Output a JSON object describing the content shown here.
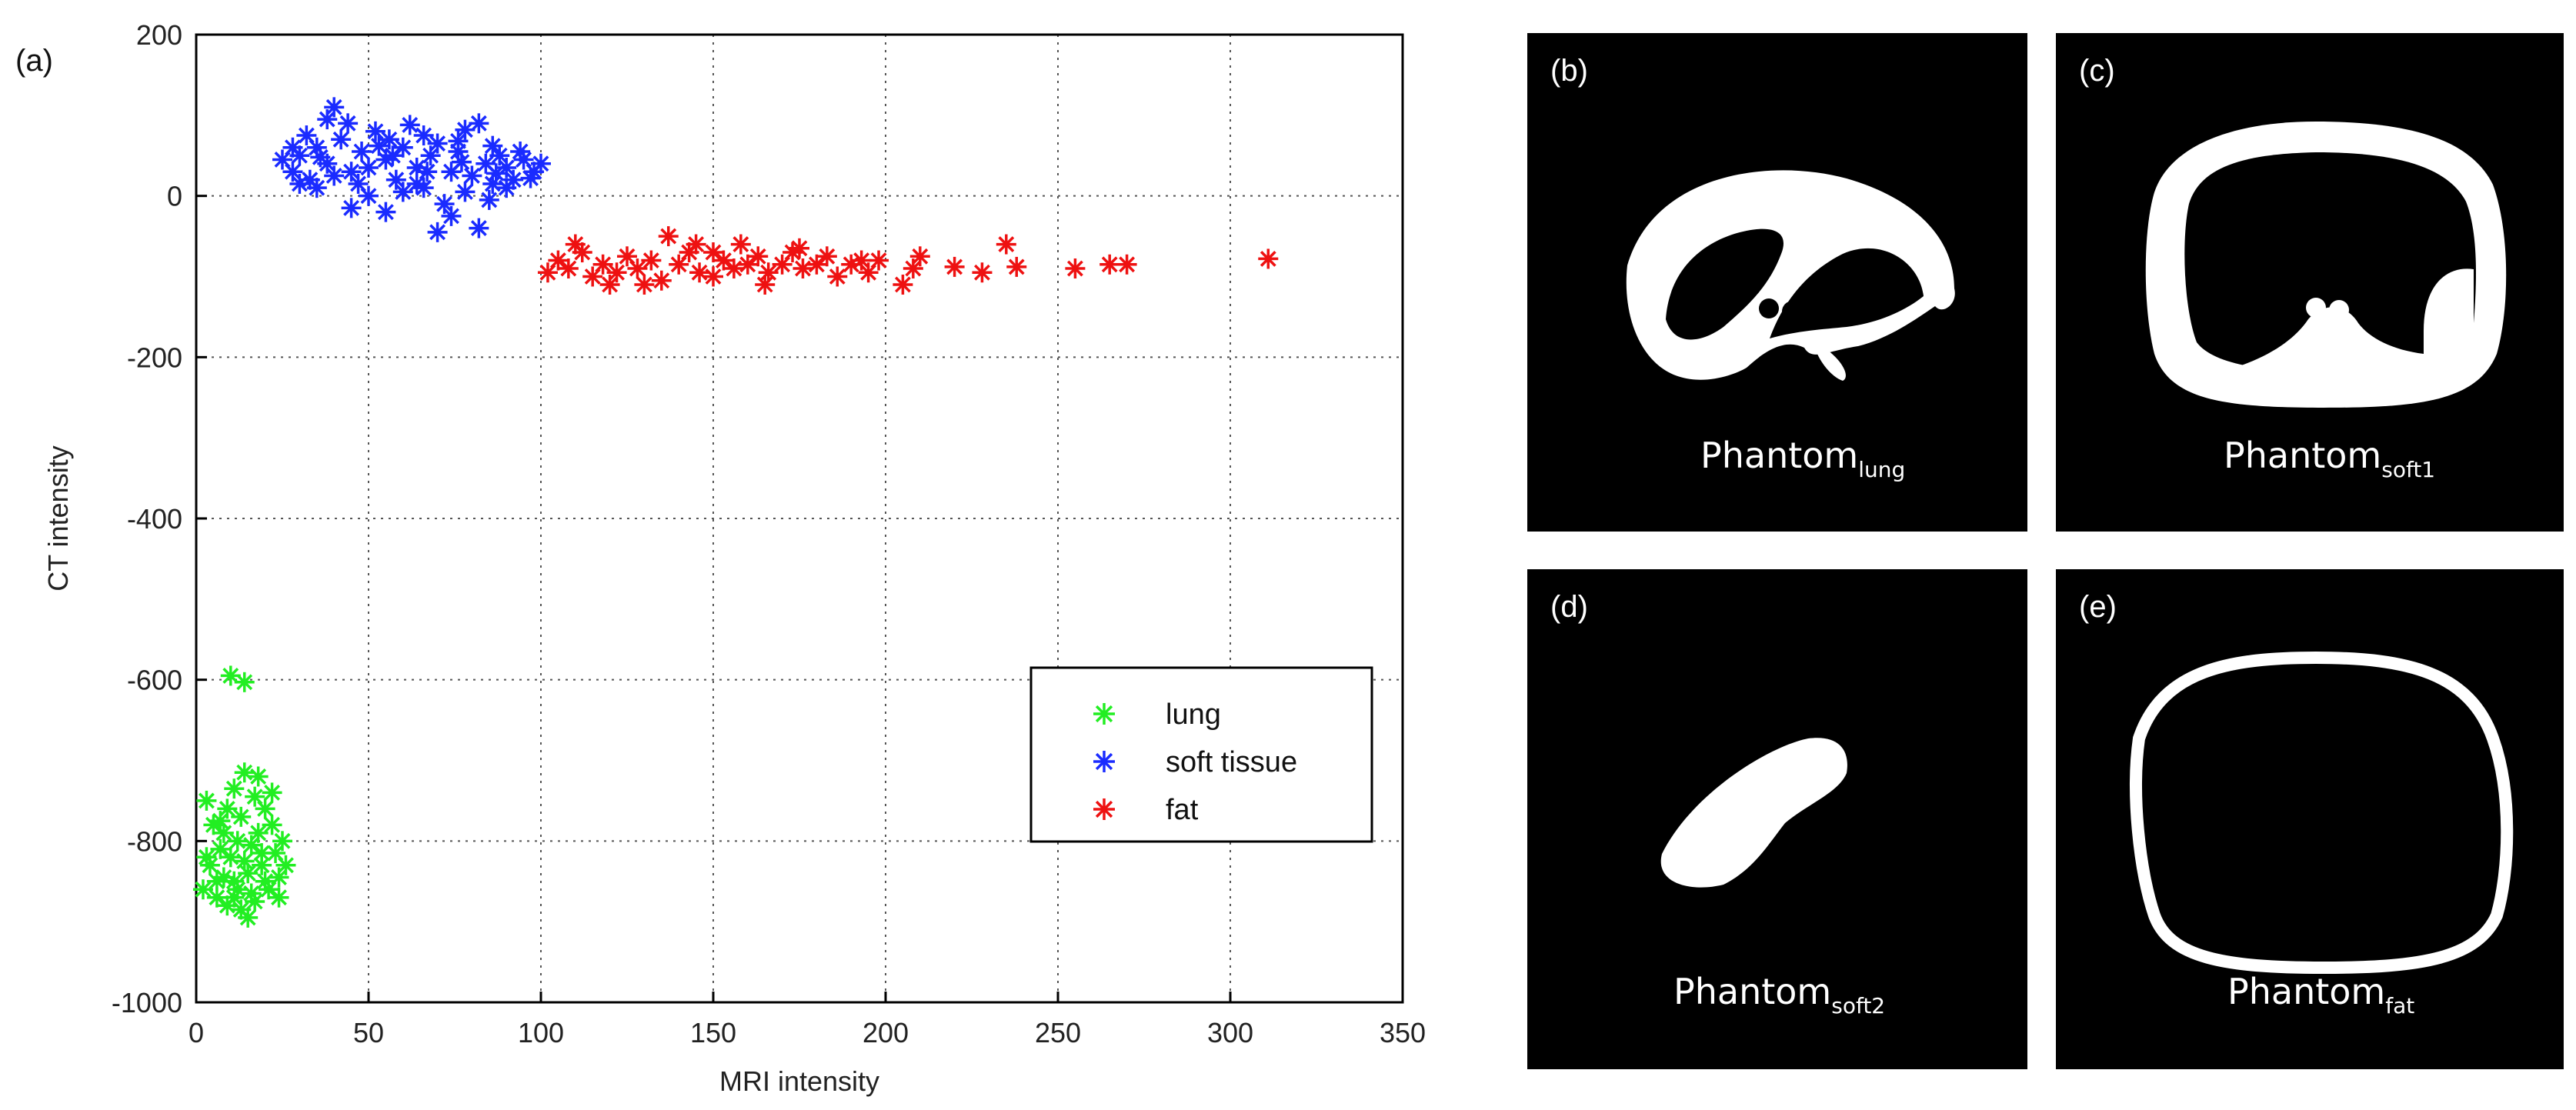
{
  "chart_data": {
    "type": "scatter",
    "panel_label": "(a)",
    "xlabel": "MRI intensity",
    "ylabel": "CT intensity",
    "xlim": [
      0,
      350
    ],
    "ylim": [
      -1000,
      200
    ],
    "xticks": [
      0,
      50,
      100,
      150,
      200,
      250,
      300,
      350
    ],
    "yticks": [
      200,
      0,
      -200,
      -400,
      -600,
      -800,
      -1000
    ],
    "grid": true,
    "legend_position": "bottom-right",
    "series": [
      {
        "name": "lung",
        "color": "#22ee22",
        "marker": "asterisk",
        "points": [
          [
            10,
            -595
          ],
          [
            14,
            -603
          ],
          [
            3,
            -750
          ],
          [
            5,
            -780
          ],
          [
            8,
            -790
          ],
          [
            12,
            -800
          ],
          [
            16,
            -805
          ],
          [
            20,
            -760
          ],
          [
            22,
            -740
          ],
          [
            18,
            -720
          ],
          [
            14,
            -715
          ],
          [
            11,
            -735
          ],
          [
            7,
            -810
          ],
          [
            4,
            -830
          ],
          [
            2,
            -860
          ],
          [
            6,
            -870
          ],
          [
            9,
            -880
          ],
          [
            13,
            -885
          ],
          [
            17,
            -875
          ],
          [
            21,
            -860
          ],
          [
            24,
            -845
          ],
          [
            26,
            -830
          ],
          [
            23,
            -815
          ],
          [
            19,
            -830
          ],
          [
            15,
            -840
          ],
          [
            11,
            -850
          ],
          [
            8,
            -845
          ],
          [
            12,
            -860
          ],
          [
            16,
            -865
          ],
          [
            20,
            -850
          ],
          [
            14,
            -825
          ],
          [
            10,
            -820
          ],
          [
            18,
            -790
          ],
          [
            22,
            -780
          ],
          [
            25,
            -800
          ],
          [
            13,
            -770
          ],
          [
            9,
            -760
          ],
          [
            17,
            -745
          ],
          [
            6,
            -850
          ],
          [
            3,
            -820
          ],
          [
            15,
            -895
          ],
          [
            11,
            -870
          ],
          [
            19,
            -815
          ],
          [
            24,
            -870
          ],
          [
            7,
            -775
          ]
        ]
      },
      {
        "name": "soft tissue",
        "color": "#1a2bff",
        "marker": "asterisk",
        "points": [
          [
            25,
            45
          ],
          [
            28,
            30
          ],
          [
            30,
            50
          ],
          [
            33,
            20
          ],
          [
            35,
            60
          ],
          [
            38,
            40
          ],
          [
            40,
            110
          ],
          [
            38,
            95
          ],
          [
            42,
            70
          ],
          [
            45,
            30
          ],
          [
            48,
            55
          ],
          [
            50,
            0
          ],
          [
            52,
            80
          ],
          [
            55,
            45
          ],
          [
            58,
            20
          ],
          [
            60,
            60
          ],
          [
            62,
            88
          ],
          [
            64,
            35
          ],
          [
            66,
            10
          ],
          [
            68,
            50
          ],
          [
            70,
            65
          ],
          [
            72,
            -10
          ],
          [
            74,
            30
          ],
          [
            76,
            55
          ],
          [
            78,
            82
          ],
          [
            80,
            25
          ],
          [
            82,
            90
          ],
          [
            84,
            40
          ],
          [
            86,
            15
          ],
          [
            88,
            50
          ],
          [
            90,
            35
          ],
          [
            92,
            20
          ],
          [
            95,
            45
          ],
          [
            98,
            30
          ],
          [
            100,
            40
          ],
          [
            70,
            -45
          ],
          [
            82,
            -40
          ],
          [
            55,
            -20
          ],
          [
            45,
            -15
          ],
          [
            35,
            10
          ],
          [
            28,
            60
          ],
          [
            32,
            75
          ],
          [
            44,
            90
          ],
          [
            56,
            70
          ],
          [
            66,
            75
          ],
          [
            76,
            68
          ],
          [
            86,
            62
          ],
          [
            94,
            55
          ],
          [
            60,
            5
          ],
          [
            74,
            -25
          ],
          [
            50,
            35
          ],
          [
            40,
            25
          ],
          [
            30,
            15
          ],
          [
            64,
            15
          ],
          [
            78,
            5
          ],
          [
            90,
            10
          ],
          [
            85,
            -5
          ],
          [
            47,
            15
          ],
          [
            57,
            50
          ],
          [
            67,
            30
          ],
          [
            77,
            42
          ],
          [
            87,
            28
          ],
          [
            97,
            22
          ],
          [
            36,
            48
          ],
          [
            53,
            62
          ]
        ]
      },
      {
        "name": "fat",
        "color": "#ee1111",
        "marker": "asterisk",
        "points": [
          [
            102,
            -95
          ],
          [
            105,
            -80
          ],
          [
            108,
            -90
          ],
          [
            112,
            -70
          ],
          [
            115,
            -100
          ],
          [
            118,
            -85
          ],
          [
            122,
            -95
          ],
          [
            125,
            -75
          ],
          [
            128,
            -90
          ],
          [
            132,
            -80
          ],
          [
            135,
            -105
          ],
          [
            137,
            -50
          ],
          [
            140,
            -85
          ],
          [
            143,
            -70
          ],
          [
            146,
            -95
          ],
          [
            150,
            -100
          ],
          [
            153,
            -80
          ],
          [
            156,
            -90
          ],
          [
            158,
            -60
          ],
          [
            160,
            -85
          ],
          [
            163,
            -75
          ],
          [
            166,
            -95
          ],
          [
            170,
            -85
          ],
          [
            173,
            -70
          ],
          [
            176,
            -90
          ],
          [
            180,
            -85
          ],
          [
            183,
            -75
          ],
          [
            186,
            -100
          ],
          [
            190,
            -85
          ],
          [
            193,
            -80
          ],
          [
            195,
            -95
          ],
          [
            205,
            -110
          ],
          [
            208,
            -90
          ],
          [
            210,
            -75
          ],
          [
            220,
            -88
          ],
          [
            228,
            -95
          ],
          [
            235,
            -60
          ],
          [
            238,
            -88
          ],
          [
            255,
            -90
          ],
          [
            265,
            -85
          ],
          [
            270,
            -85
          ],
          [
            311,
            -78
          ],
          [
            110,
            -60
          ],
          [
            130,
            -110
          ],
          [
            145,
            -60
          ],
          [
            165,
            -110
          ],
          [
            120,
            -110
          ],
          [
            150,
            -70
          ],
          [
            175,
            -65
          ],
          [
            198,
            -80
          ]
        ]
      }
    ]
  },
  "panels": [
    {
      "label": "(b)",
      "caption": "Phantom",
      "subscript": "lung"
    },
    {
      "label": "(c)",
      "caption": "Phantom",
      "subscript": "soft1"
    },
    {
      "label": "(d)",
      "caption": "Phantom",
      "subscript": "soft2"
    },
    {
      "label": "(e)",
      "caption": "Phantom",
      "subscript": "fat"
    }
  ]
}
